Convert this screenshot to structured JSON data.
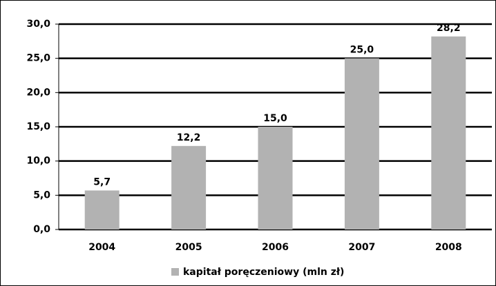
{
  "chart_data": {
    "type": "bar",
    "categories": [
      "2004",
      "2005",
      "2006",
      "2007",
      "2008"
    ],
    "series": [
      {
        "name": "kapitał poręczeniowy (mln zł)",
        "color": "#b2b2b2",
        "values": [
          5.7,
          12.2,
          15.0,
          25.0,
          28.2
        ],
        "value_labels": [
          "5,7",
          "12,2",
          "15,0",
          "25,0",
          "28,2"
        ]
      }
    ],
    "ylim": [
      0,
      30
    ],
    "yticks": [
      {
        "value": 0,
        "label": "0,0"
      },
      {
        "value": 5,
        "label": "5,0"
      },
      {
        "value": 10,
        "label": "10,0"
      },
      {
        "value": 15,
        "label": "15,0"
      },
      {
        "value": 20,
        "label": "20,0"
      },
      {
        "value": 25,
        "label": "25,0"
      },
      {
        "value": 30,
        "label": "30,0"
      }
    ],
    "grid": true,
    "legend": "bottom"
  }
}
